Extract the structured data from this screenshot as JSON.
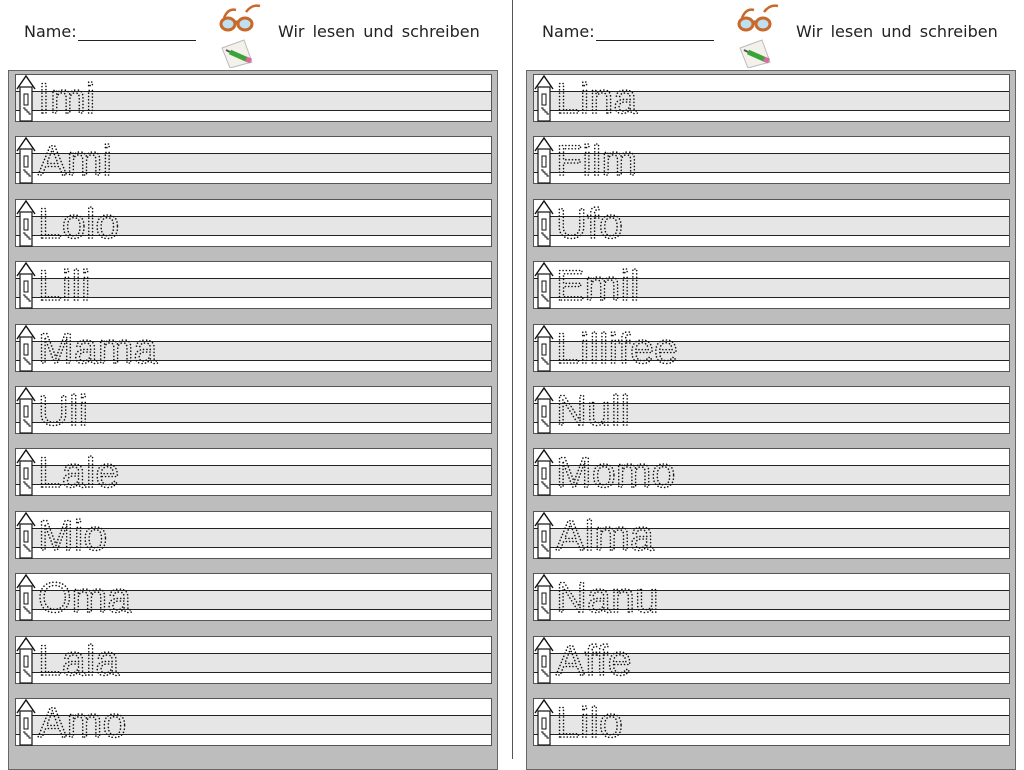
{
  "pages": [
    {
      "name_label": "Name:",
      "title": "Wir lesen und schreiben",
      "words": [
        "Imi",
        "Ami",
        "Lolo",
        "Lili",
        "Mama",
        "Uli",
        "Lale",
        "Mio",
        "Oma",
        "Lala",
        "Amo"
      ]
    },
    {
      "name_label": "Name:",
      "title": "Wir lesen und schreiben",
      "words": [
        "Lina",
        "Film",
        "Ufo",
        "Emil",
        "Lillifee",
        "Null",
        "Momo",
        "Alma",
        "Nanu",
        "Affe",
        "Lilo"
      ]
    }
  ],
  "icons": [
    "glasses-icon",
    "pencil-paper-icon",
    "house-icon"
  ],
  "colors": {
    "panel": "#bdbdbd",
    "midline": "#e6e6e6",
    "glasses": "#c8692a"
  }
}
